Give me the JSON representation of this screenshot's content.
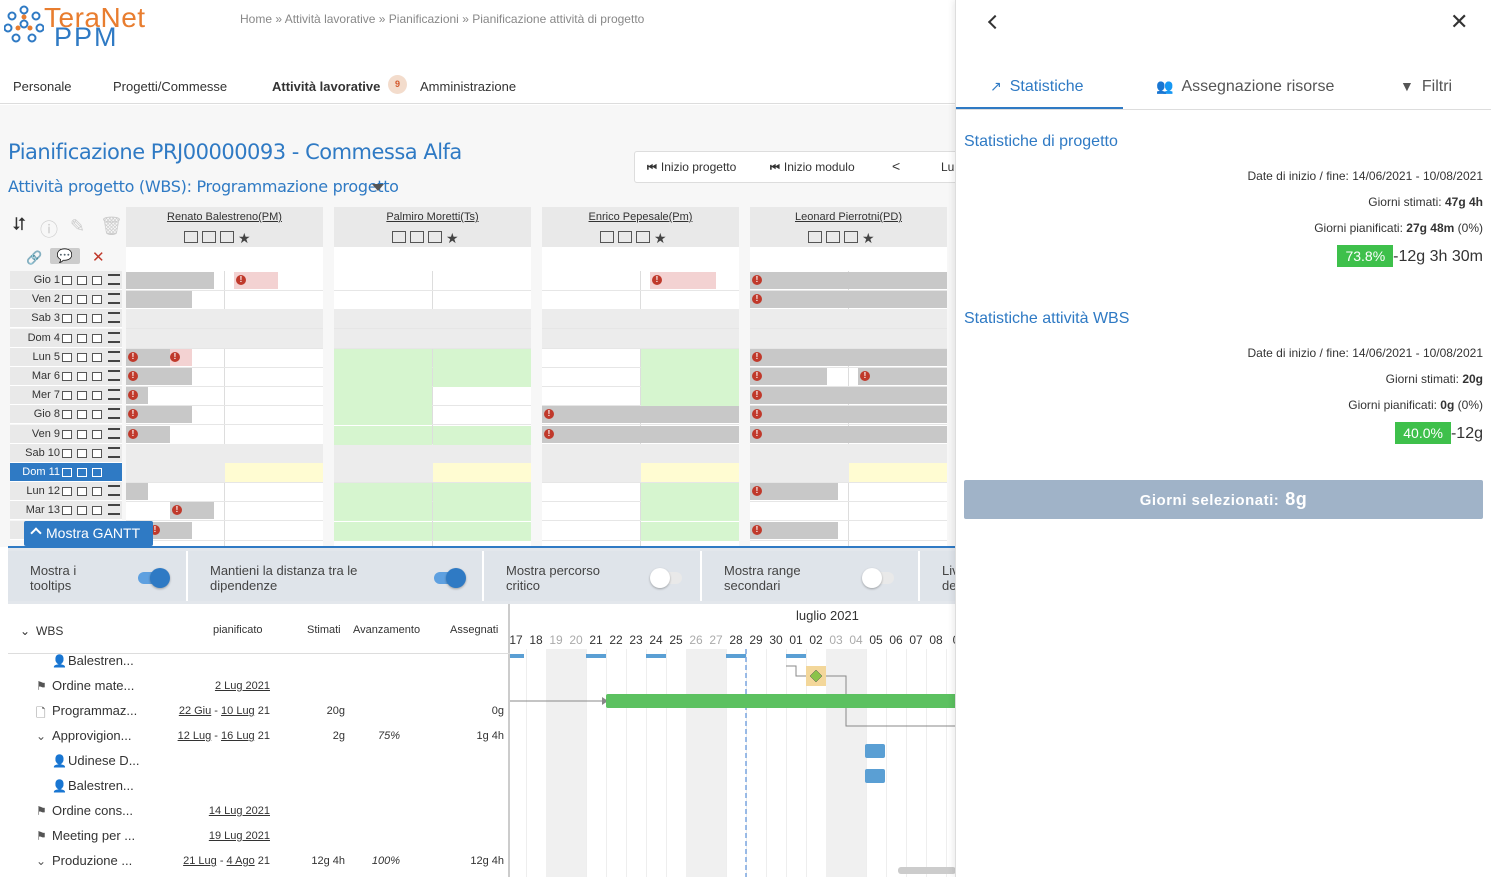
{
  "brand": {
    "line1": "TeraNet",
    "line2": "PPM"
  },
  "breadcrumb": {
    "items": [
      "Home",
      "Attività lavorative",
      "Pianificazioni",
      "Pianificazione attività di progetto"
    ],
    "separator": "»"
  },
  "nav": {
    "items": [
      "Personale",
      "Progetti/Commesse",
      "Attività lavorative",
      "Amministrazione"
    ],
    "active": "Attività lavorative",
    "badge": "9"
  },
  "page": {
    "title": "Pianificazione  PRJ00000093 - Commessa Alfa",
    "subtitle": "Attività progetto (WBS): Programmazione progetto"
  },
  "toolbar": {
    "start_project": "Inizio progetto",
    "start_module": "Inizio modulo",
    "prev": "<",
    "cut_label": "Lu"
  },
  "calendar": {
    "people": [
      "Renato Balestreno(PM)",
      "Palmiro Moretti(Ts)",
      "Enrico Pepesale(Pm)",
      "Leonard Pierrotni(PD)"
    ],
    "days": [
      "Gio 1",
      "Ven 2",
      "Sab 3",
      "Dom 4",
      "Lun 5",
      "Mar 6",
      "Mer 7",
      "Gio 8",
      "Ven 9",
      "Sab 10",
      "Dom 11",
      "Lun 12",
      "Mar 13",
      "M"
    ],
    "selected_day": "Dom 11"
  },
  "gantt": {
    "toggle_label": "Mostra GANTT",
    "options": [
      {
        "label": "Mostra i tooltips",
        "on": true
      },
      {
        "label": "Mantieni la distanza tra le dipendenze",
        "on": true
      },
      {
        "label": "Mostra percorso critico",
        "on": false
      },
      {
        "label": "Mostra range secondari",
        "on": false
      },
      {
        "label": "Liv de",
        "on": false
      }
    ],
    "columns": [
      "WBS",
      "pianificato",
      "Stimati",
      "Avanzamento",
      "Assegnati"
    ],
    "month": "luglio 2021",
    "day_numbers": [
      "17",
      "18",
      "19",
      "20",
      "21",
      "22",
      "23",
      "24",
      "25",
      "26",
      "27",
      "28",
      "29",
      "30",
      "01",
      "02",
      "03",
      "04",
      "05",
      "06",
      "07",
      "08",
      "0"
    ],
    "weekend_days": [
      "19",
      "20",
      "26",
      "27",
      "03",
      "04"
    ],
    "rows": [
      {
        "name": "Balestren...",
        "icon": "person-icon",
        "planned_from": "",
        "planned_to": "",
        "year": "",
        "estimated": "",
        "progress": "",
        "assigned": ""
      },
      {
        "name": "Ordine mate...",
        "icon": "flag-icon",
        "planned_from": "2 Lug 2021",
        "planned_to": "",
        "year": "",
        "estimated": "",
        "progress": "",
        "assigned": ""
      },
      {
        "name": "Programmaz...",
        "icon": "document-icon",
        "planned_from": "22 Giu",
        "planned_to": "10 Lug",
        "year": "21",
        "estimated": "20g",
        "progress": "",
        "assigned": "0g"
      },
      {
        "name": "Approvigion...",
        "icon": "chevron-down-icon",
        "planned_from": "12 Lug",
        "planned_to": "16 Lug",
        "year": "21",
        "estimated": "2g",
        "progress": "75%",
        "assigned": "1g 4h"
      },
      {
        "name": "Udinese D...",
        "icon": "person-icon",
        "planned_from": "",
        "planned_to": "",
        "year": "",
        "estimated": "",
        "progress": "",
        "assigned": ""
      },
      {
        "name": "Balestren...",
        "icon": "person-icon",
        "planned_from": "",
        "planned_to": "",
        "year": "",
        "estimated": "",
        "progress": "",
        "assigned": ""
      },
      {
        "name": "Ordine cons...",
        "icon": "flag-icon",
        "planned_from": "14 Lug 2021",
        "planned_to": "",
        "year": "",
        "estimated": "",
        "progress": "",
        "assigned": ""
      },
      {
        "name": "Meeting per ...",
        "icon": "flag-icon",
        "planned_from": "19 Lug 2021",
        "planned_to": "",
        "year": "",
        "estimated": "",
        "progress": "",
        "assigned": ""
      },
      {
        "name": "Produzione ...",
        "icon": "chevron-down-icon",
        "planned_from": "21 Lug",
        "planned_to": "4 Ago",
        "year": "21",
        "estimated": "12g 4h",
        "progress": "100%",
        "assigned": "12g 4h"
      }
    ]
  },
  "panel": {
    "tabs": [
      "Statistiche",
      "Assegnazione risorse",
      "Filtri"
    ],
    "active_tab": "Statistiche",
    "project_stats": {
      "title": "Statistiche di progetto",
      "dates_label": "Date di inizio / fine:",
      "dates_value": "14/06/2021 - 10/08/2021",
      "estimated_label": "Giorni stimati:",
      "estimated_value": "47g 4h",
      "planned_label": "Giorni pianificati:",
      "planned_value": "27g 48m",
      "planned_pct": "(0%)",
      "progress_pct": "73.8%",
      "remaining": "-12g 3h 30m"
    },
    "wbs_stats": {
      "title": "Statistiche attività WBS",
      "dates_label": "Date di inizio / fine:",
      "dates_value": "14/06/2021 - 10/08/2021",
      "estimated_label": "Giorni stimati:",
      "estimated_value": "20g",
      "planned_label": "Giorni pianificati:",
      "planned_value": "0g",
      "planned_pct": "(0%)",
      "progress_pct": "40.0%",
      "remaining": "-12g"
    },
    "selected_days_label": "Giorni selezionati:",
    "selected_days_value": "8g"
  },
  "colors": {
    "accent": "#2f7ac4",
    "orange": "#e87d2f",
    "green": "#3ec04b",
    "error": "#c0392b"
  }
}
